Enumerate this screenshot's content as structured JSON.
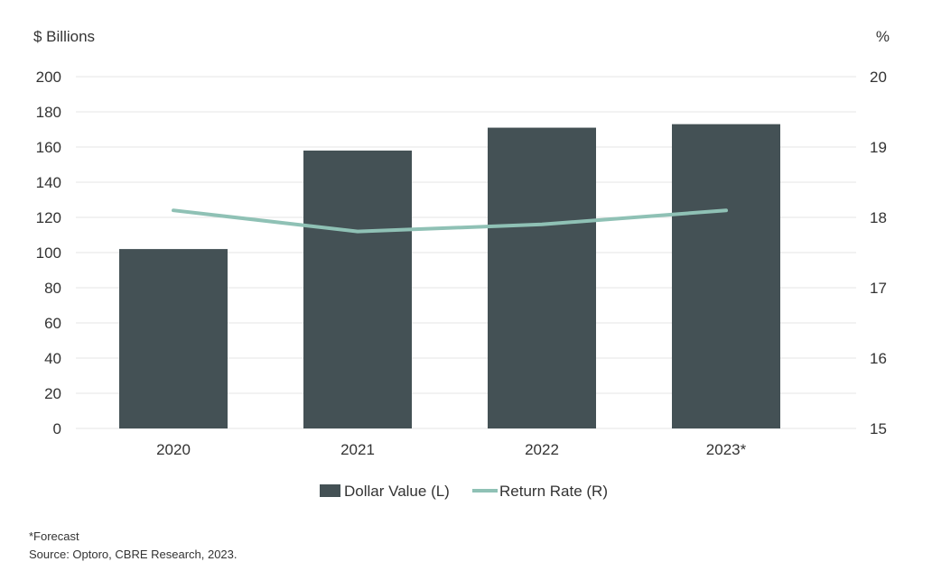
{
  "chart_data": {
    "type": "bar",
    "categories": [
      "2020",
      "2021",
      "2022",
      "2023*"
    ],
    "series": [
      {
        "name": "Dollar Value (L)",
        "type": "bar",
        "axis": "left",
        "color": "#445155",
        "values": [
          102,
          158,
          171,
          173
        ]
      },
      {
        "name": "Return Rate (R)",
        "type": "line",
        "axis": "right",
        "color": "#8fc1b5",
        "values": [
          18.1,
          17.8,
          17.9,
          18.1
        ]
      }
    ],
    "y_left": {
      "label": "$ Billions",
      "range": [
        0,
        200
      ],
      "ticks": [
        "0",
        "20",
        "40",
        "60",
        "80",
        "100",
        "120",
        "140",
        "160",
        "180",
        "200"
      ]
    },
    "y_right": {
      "label": "%",
      "range": [
        15,
        20
      ],
      "ticks": [
        "15",
        "16",
        "17",
        "18",
        "19",
        "20"
      ]
    },
    "grid": true,
    "legend_position": "bottom-center"
  },
  "footnotes": {
    "forecast_note": "*Forecast",
    "source": "Source: Optoro, CBRE Research, 2023."
  }
}
